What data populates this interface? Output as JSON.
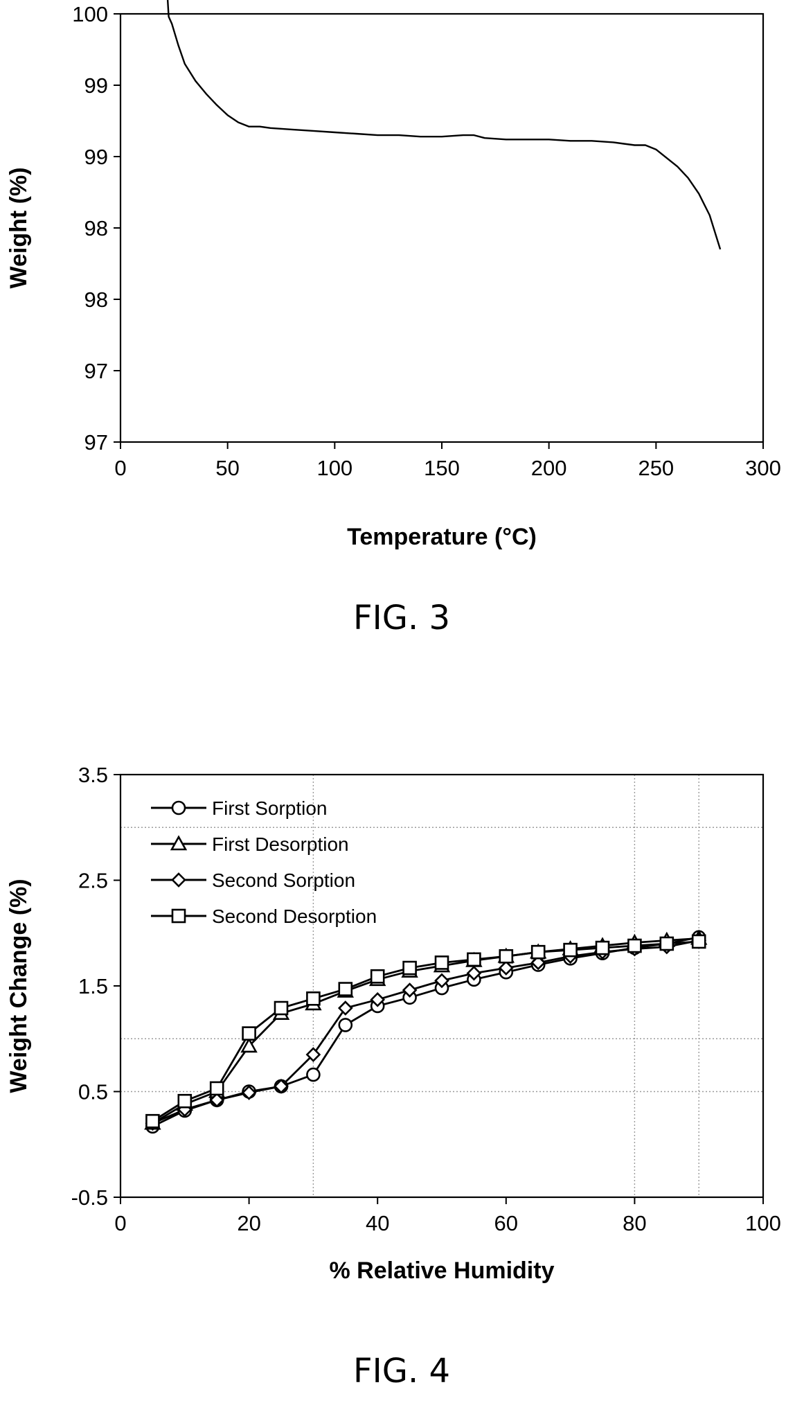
{
  "chart_data": [
    {
      "type": "line",
      "caption": "FIG. 3",
      "title": "",
      "xlabel": "Temperature (°C)",
      "ylabel": "Weight (%)",
      "xlim": [
        0,
        300
      ],
      "ylim": [
        97,
        100
      ],
      "x_ticks": [
        0,
        50,
        100,
        150,
        200,
        250,
        300
      ],
      "x_tick_labels": [
        "0",
        "50",
        "100",
        "150",
        "200",
        "250",
        "300"
      ],
      "y_ticks": [
        100,
        99.5,
        99,
        98.5,
        98,
        97.5,
        97
      ],
      "y_tick_labels": [
        "100",
        "99",
        "99",
        "98",
        "98",
        "97",
        "97"
      ],
      "grid": false,
      "series": [
        {
          "x": [
            22,
            22.5,
            24,
            27,
            30,
            35,
            40,
            45,
            50,
            55,
            60,
            62,
            65,
            70,
            80,
            90,
            100,
            110,
            120,
            130,
            140,
            150,
            160,
            165,
            170,
            180,
            190,
            200,
            210,
            220,
            230,
            235,
            240,
            245,
            250,
            255,
            260,
            265,
            270,
            275,
            280
          ],
          "y": [
            100.1,
            99.98,
            99.93,
            99.78,
            99.65,
            99.53,
            99.44,
            99.36,
            99.29,
            99.24,
            99.21,
            99.21,
            99.21,
            99.2,
            99.19,
            99.18,
            99.17,
            99.16,
            99.15,
            99.15,
            99.14,
            99.14,
            99.15,
            99.15,
            99.13,
            99.12,
            99.12,
            99.12,
            99.11,
            99.11,
            99.1,
            99.09,
            99.08,
            99.08,
            99.05,
            98.99,
            98.93,
            98.85,
            98.74,
            98.59,
            98.35
          ]
        }
      ]
    },
    {
      "type": "line",
      "caption": "FIG. 4",
      "title": "",
      "xlabel": "% Relative Humidity",
      "ylabel": "Weight Change (%)",
      "xlim": [
        0,
        100
      ],
      "ylim": [
        -0.5,
        3.5
      ],
      "x_ticks": [
        0,
        20,
        40,
        60,
        80,
        100
      ],
      "x_tick_labels": [
        "0",
        "20",
        "40",
        "60",
        "80",
        "100"
      ],
      "y_ticks": [
        -0.5,
        0.5,
        1.5,
        2.5,
        3.5
      ],
      "y_tick_labels": [
        "-0.5",
        "0.5",
        "1.5",
        "2.5",
        "3.5"
      ],
      "grid": true,
      "grid_x": [
        30,
        80,
        90
      ],
      "grid_y": [
        3,
        1,
        0.5
      ],
      "legend": "top-left",
      "series": [
        {
          "name": "First Sorption",
          "marker": "circle",
          "x": [
            5,
            10,
            15,
            20,
            25,
            30,
            35,
            40,
            45,
            50,
            55,
            60,
            65,
            70,
            75,
            80,
            85,
            90
          ],
          "y": [
            0.17,
            0.32,
            0.42,
            0.5,
            0.55,
            0.66,
            1.13,
            1.31,
            1.39,
            1.48,
            1.56,
            1.63,
            1.7,
            1.76,
            1.81,
            1.86,
            1.9,
            1.96
          ]
        },
        {
          "name": "First Desorption",
          "marker": "triangle",
          "x": [
            5,
            10,
            15,
            20,
            25,
            30,
            35,
            40,
            45,
            50,
            55,
            60,
            65,
            70,
            75,
            80,
            85,
            90
          ],
          "y": [
            0.2,
            0.38,
            0.5,
            0.93,
            1.24,
            1.33,
            1.45,
            1.56,
            1.64,
            1.69,
            1.74,
            1.78,
            1.82,
            1.85,
            1.88,
            1.91,
            1.93,
            1.95
          ]
        },
        {
          "name": "Second Sorption",
          "marker": "diamond",
          "x": [
            5,
            10,
            15,
            20,
            25,
            30,
            35,
            40,
            45,
            50,
            55,
            60,
            65,
            70,
            75,
            80,
            85,
            90
          ],
          "y": [
            0.2,
            0.33,
            0.42,
            0.49,
            0.55,
            0.85,
            1.29,
            1.37,
            1.46,
            1.55,
            1.62,
            1.67,
            1.72,
            1.78,
            1.82,
            1.85,
            1.87,
            1.93
          ]
        },
        {
          "name": "Second Desorption",
          "marker": "square",
          "x": [
            5,
            10,
            15,
            20,
            25,
            30,
            35,
            40,
            45,
            50,
            55,
            60,
            65,
            70,
            75,
            80,
            85,
            90
          ],
          "y": [
            0.22,
            0.41,
            0.53,
            1.05,
            1.29,
            1.38,
            1.47,
            1.59,
            1.67,
            1.72,
            1.75,
            1.78,
            1.82,
            1.84,
            1.86,
            1.88,
            1.9,
            1.92
          ]
        }
      ]
    }
  ]
}
